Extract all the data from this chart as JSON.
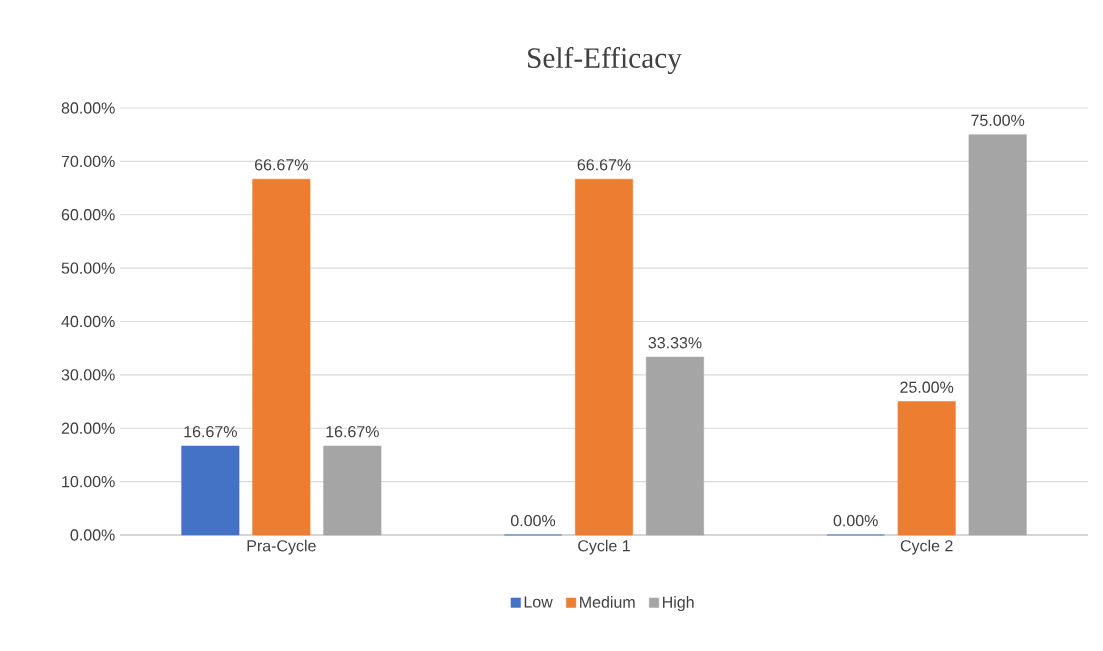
{
  "chart_data": {
    "type": "bar",
    "title": "Self-Efficacy",
    "categories": [
      "Pra-Cycle",
      "Cycle 1",
      "Cycle 2"
    ],
    "series": [
      {
        "name": "Low",
        "color": "#4472c4",
        "values": [
          16.67,
          0,
          0
        ],
        "value_labels": [
          "16.67%",
          "0.00%",
          "0.00%"
        ]
      },
      {
        "name": "Medium",
        "color": "#ed7d31",
        "values": [
          66.67,
          66.67,
          25
        ],
        "value_labels": [
          "66.67%",
          "66.67%",
          "25.00%"
        ]
      },
      {
        "name": "High",
        "color": "#a5a5a5",
        "values": [
          16.67,
          33.33,
          75
        ],
        "value_labels": [
          "16.67%",
          "33.33%",
          "75.00%"
        ]
      }
    ],
    "ylim": [
      0,
      80
    ],
    "yticks": [
      {
        "value": 0,
        "label": "0.00%"
      },
      {
        "value": 10,
        "label": "10.00%"
      },
      {
        "value": 20,
        "label": "20.00%"
      },
      {
        "value": 30,
        "label": "30.00%"
      },
      {
        "value": 40,
        "label": "40.00%"
      },
      {
        "value": 50,
        "label": "50.00%"
      },
      {
        "value": 60,
        "label": "60.00%"
      },
      {
        "value": 70,
        "label": "70.00%"
      },
      {
        "value": 80,
        "label": "80.00%"
      }
    ],
    "grid": "y",
    "legend": "bottom"
  }
}
